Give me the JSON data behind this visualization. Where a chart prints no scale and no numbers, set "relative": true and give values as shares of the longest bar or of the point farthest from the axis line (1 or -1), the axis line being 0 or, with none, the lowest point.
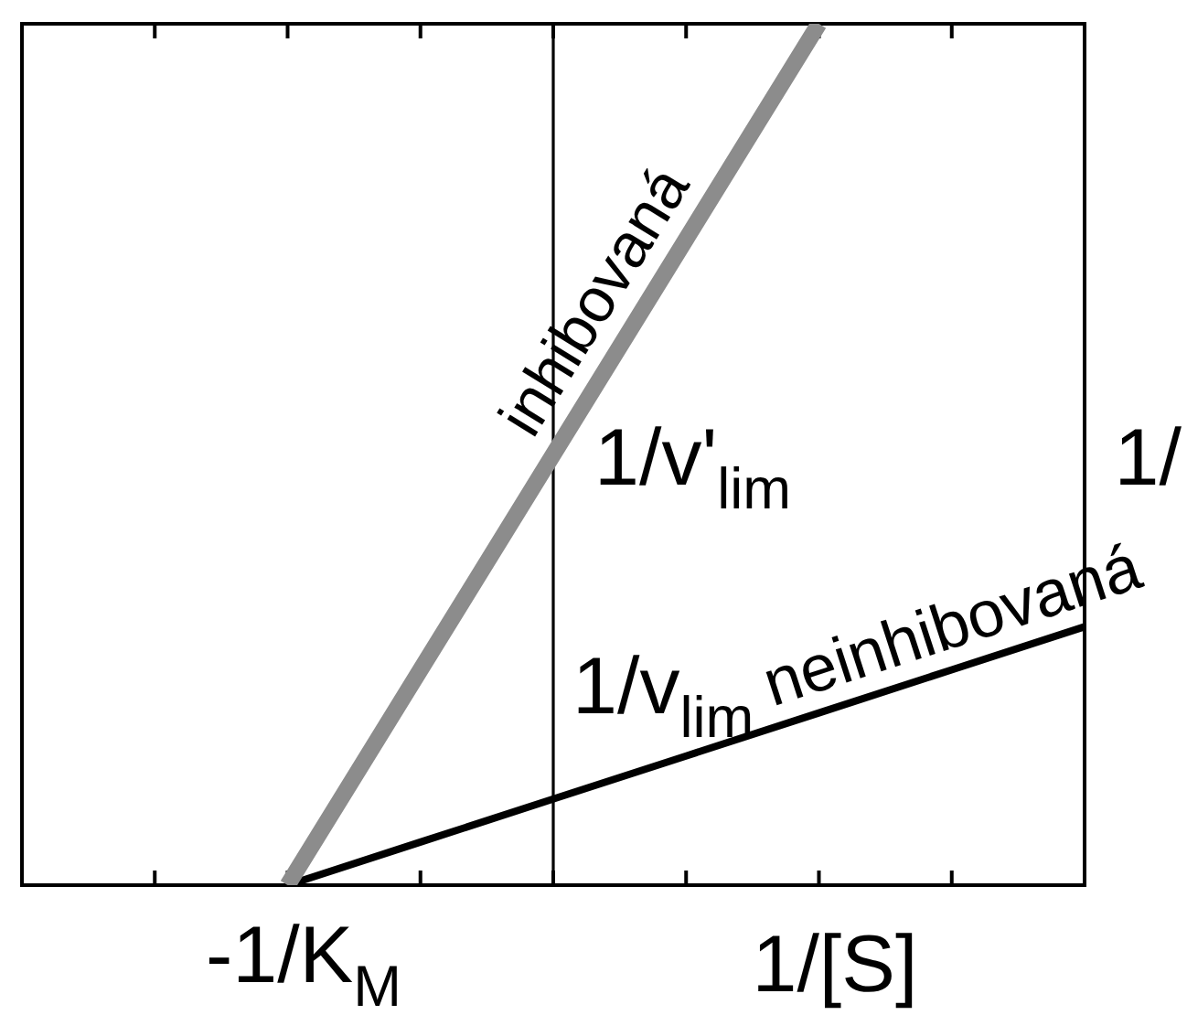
{
  "chart_data": {
    "type": "line",
    "xlabel": "1/[S]",
    "relative": true,
    "categories": [
      null,
      null,
      null,
      null,
      null,
      null,
      null,
      null,
      null
    ],
    "series": [
      {
        "name": "inhibovaná",
        "color": "#8c8c8c",
        "values": [
          null,
          null,
          0,
          0.25,
          0.5,
          0.75,
          1,
          null,
          null
        ]
      },
      {
        "name": "neinhibovaná",
        "color": "#000000",
        "values": [
          null,
          null,
          0,
          0.05,
          0.1,
          0.15,
          0.2,
          0.25,
          0.3
        ]
      }
    ],
    "annotations": [
      "-1/K$_{M}$",
      "1/v'$_{lim}$",
      "1/v$_{lim}$",
      "1/"
    ],
    "grid": false,
    "legend": false,
    "marker": "none",
    "line_style": "solid"
  }
}
